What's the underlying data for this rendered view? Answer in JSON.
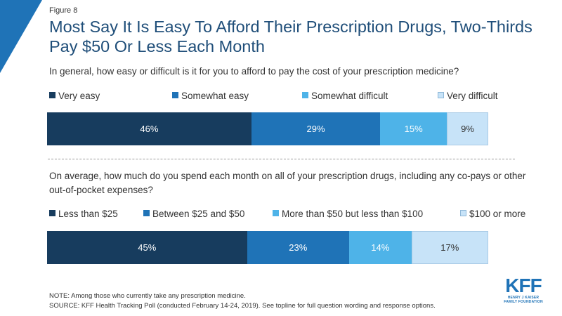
{
  "figure_label": "Figure 8",
  "title": "Most Say It Is Easy To Afford Their Prescription Drugs, Two-Thirds Pay $50 Or Less Each Month",
  "colors": [
    "#173c5e",
    "#1f73b7",
    "#4eb3e8",
    "#c7e3f8"
  ],
  "label_colors": [
    "#ffffff",
    "#ffffff",
    "#ffffff",
    "#333333"
  ],
  "chart_data": [
    {
      "type": "bar",
      "orientation": "horizontal-stacked",
      "question": "In general, how easy or difficult is it for you to afford to pay the cost of your prescription medicine?",
      "categories": [
        "Very easy",
        "Somewhat easy",
        "Somewhat difficult",
        "Very difficult"
      ],
      "values": [
        46,
        29,
        15,
        9
      ],
      "unit": "%"
    },
    {
      "type": "bar",
      "orientation": "horizontal-stacked",
      "question": "On average, how much do you spend each month on all of your prescription drugs, including any co-pays or other out-of-pocket expenses?",
      "categories": [
        "Less than $25",
        "Between $25 and $50",
        "More than $50 but less than $100",
        "$100 or more"
      ],
      "values": [
        45,
        23,
        14,
        17
      ],
      "unit": "%"
    }
  ],
  "note": "NOTE: Among those who currently take any prescription medicine.",
  "source": "SOURCE: KFF Health Tracking Poll (conducted February 14-24, 2019). See topline for full question wording and response options.",
  "logo": {
    "main": "KFF",
    "sub1": "HENRY J KAISER",
    "sub2": "FAMILY FOUNDATION"
  }
}
